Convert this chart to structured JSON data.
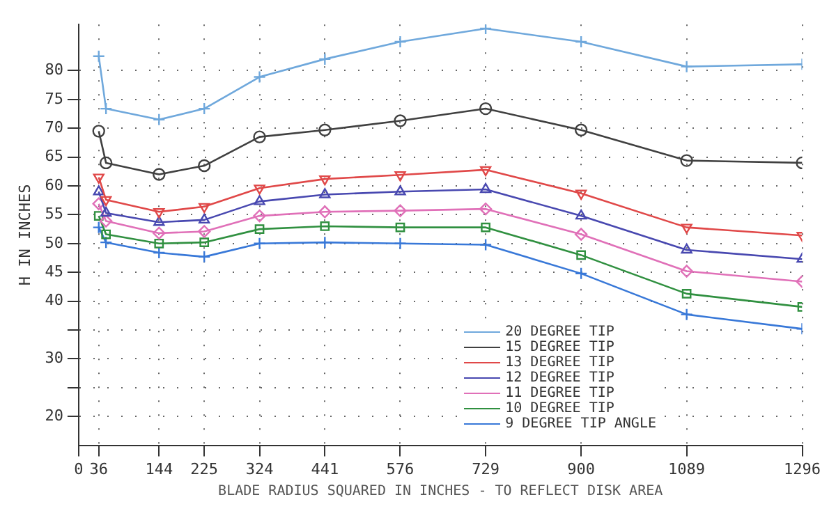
{
  "chart_data": {
    "type": "line",
    "xlabel": "BLADE RADIUS SQUARED IN INCHES - TO REFLECT DISK AREA",
    "ylabel": "H IN INCHES",
    "xlim": [
      0,
      1296
    ],
    "xticks": [
      0,
      36,
      144,
      225,
      324,
      441,
      576,
      729,
      900,
      1089,
      1296
    ],
    "ylim": [
      15,
      88
    ],
    "yticks": [
      20,
      {
        "value": 25,
        "label": null
      },
      30,
      {
        "value": 35,
        "label": null
      },
      40,
      45,
      50,
      55,
      60,
      65,
      70,
      75,
      80
    ],
    "x": [
      36,
      49,
      144,
      225,
      324,
      441,
      576,
      729,
      900,
      1089,
      1296
    ],
    "grid": true,
    "legend": "bottom right",
    "line_style": "solid",
    "series": [
      {
        "name": "20 DEGREE TIP",
        "color": "#6fa8dc",
        "marker": "cross",
        "values": [
          82.5,
          73.4,
          71.5,
          73.4,
          78.9,
          82,
          85,
          87.3,
          85,
          80.7,
          81.1
        ]
      },
      {
        "name": "15 DEGREE TIP",
        "color": "#404040",
        "marker": "circle",
        "values": [
          69.5,
          64,
          62,
          63.5,
          68.5,
          69.7,
          71.3,
          73.4,
          69.7,
          64.4,
          64
        ]
      },
      {
        "name": "13 DEGREE TIP",
        "color": "#e04848",
        "marker": "triangle",
        "values": [
          61.5,
          57.6,
          55.5,
          56.4,
          59.6,
          61.2,
          61.9,
          62.8,
          58.7,
          52.8,
          51.4
        ]
      },
      {
        "name": "12 DEGREE TIP",
        "color": "#4848b0",
        "marker": "triangle",
        "values": [
          59,
          55.3,
          53.7,
          54.1,
          57.3,
          58.5,
          59,
          59.4,
          54.8,
          48.9,
          47.3
        ]
      },
      {
        "name": "11 DEGREE TIP",
        "color": "#e070b8",
        "marker": "diamond",
        "values": [
          56.9,
          53.9,
          51.8,
          52.1,
          54.8,
          55.5,
          55.7,
          56,
          51.6,
          45.2,
          43.4
        ]
      },
      {
        "name": "10 DEGREE TIP",
        "color": "#309040",
        "marker": "square",
        "values": [
          54.8,
          51.6,
          50,
          50.2,
          52.5,
          53,
          52.8,
          52.8,
          48,
          41.3,
          39
        ]
      },
      {
        "name": "9 DEGREE TIP ANGLE",
        "color": "#3878d8",
        "marker": "cross",
        "values": [
          52.8,
          50.2,
          48.4,
          47.7,
          50,
          50.2,
          50,
          49.8,
          44.8,
          37.7,
          35.2
        ]
      }
    ]
  }
}
